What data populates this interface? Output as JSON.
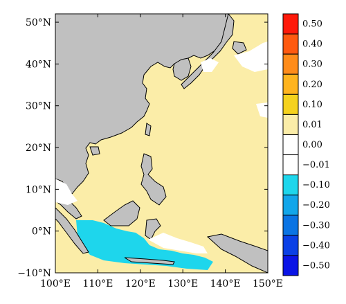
{
  "map": {
    "lat_labels": [
      "50°N",
      "40°N",
      "30°N",
      "20°N",
      "10°N",
      "0°N",
      "−10°N"
    ],
    "lon_labels": [
      "100°E",
      "110°E",
      "120°E",
      "130°E",
      "140°E",
      "150°E"
    ],
    "extent": {
      "lon": [
        100,
        150
      ],
      "lat": [
        -10,
        52
      ]
    },
    "colors": {
      "land": "#c0c0c0",
      "positive_small": "#fbeda8",
      "negative_small": "#1ed6ec",
      "coast": "#000000"
    }
  },
  "colorbar": {
    "labels": [
      "0.50",
      "0.40",
      "0.30",
      "0.20",
      "0.10",
      "0.01",
      "0.00",
      "−0.01",
      "−0.10",
      "−0.20",
      "−0.30",
      "−0.40",
      "−0.50"
    ],
    "colors": [
      "#ff1a0a",
      "#ff5a10",
      "#ff8c1a",
      "#ffb41e",
      "#f5d21e",
      "#fbeda8",
      "#ffffff",
      "#ffffff",
      "#1ed6ec",
      "#12a6ea",
      "#0a74e4",
      "#0a40e6",
      "#0a14e6"
    ]
  }
}
